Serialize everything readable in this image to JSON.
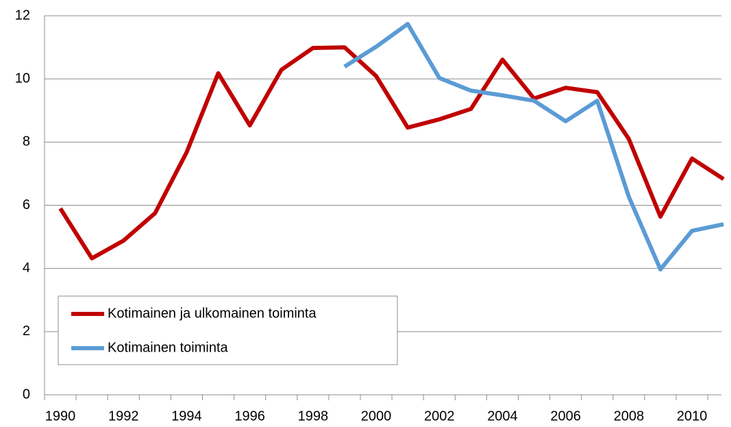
{
  "chart_data": {
    "type": "line",
    "categories": [
      "1990",
      null,
      "1992",
      null,
      "1994",
      null,
      "1996",
      null,
      "1998",
      null,
      "2000",
      null,
      "2002",
      null,
      "2004",
      null,
      "2006",
      null,
      "2008",
      null,
      "2010",
      null
    ],
    "series": [
      {
        "name": "Kotimainen ja ulkomainen toiminta",
        "color": "#c00000",
        "values": [
          5.9,
          4.32,
          4.88,
          5.75,
          7.68,
          10.18,
          8.53,
          10.29,
          10.98,
          11.0,
          10.09,
          8.46,
          8.72,
          9.05,
          10.61,
          9.38,
          9.72,
          9.58,
          8.1,
          5.64,
          7.48,
          6.83
        ]
      },
      {
        "name": "Kotimainen toiminta",
        "color": "#5b9bd5",
        "values": [
          null,
          null,
          null,
          null,
          null,
          null,
          null,
          null,
          null,
          10.39,
          11.02,
          11.74,
          10.03,
          9.63,
          9.48,
          9.31,
          8.66,
          9.31,
          6.27,
          3.97,
          5.19,
          5.4
        ]
      }
    ],
    "ylim": [
      0,
      12
    ],
    "yticks": [
      0,
      2,
      4,
      6,
      8,
      10,
      12
    ],
    "grid": true,
    "legend": "lower left"
  }
}
